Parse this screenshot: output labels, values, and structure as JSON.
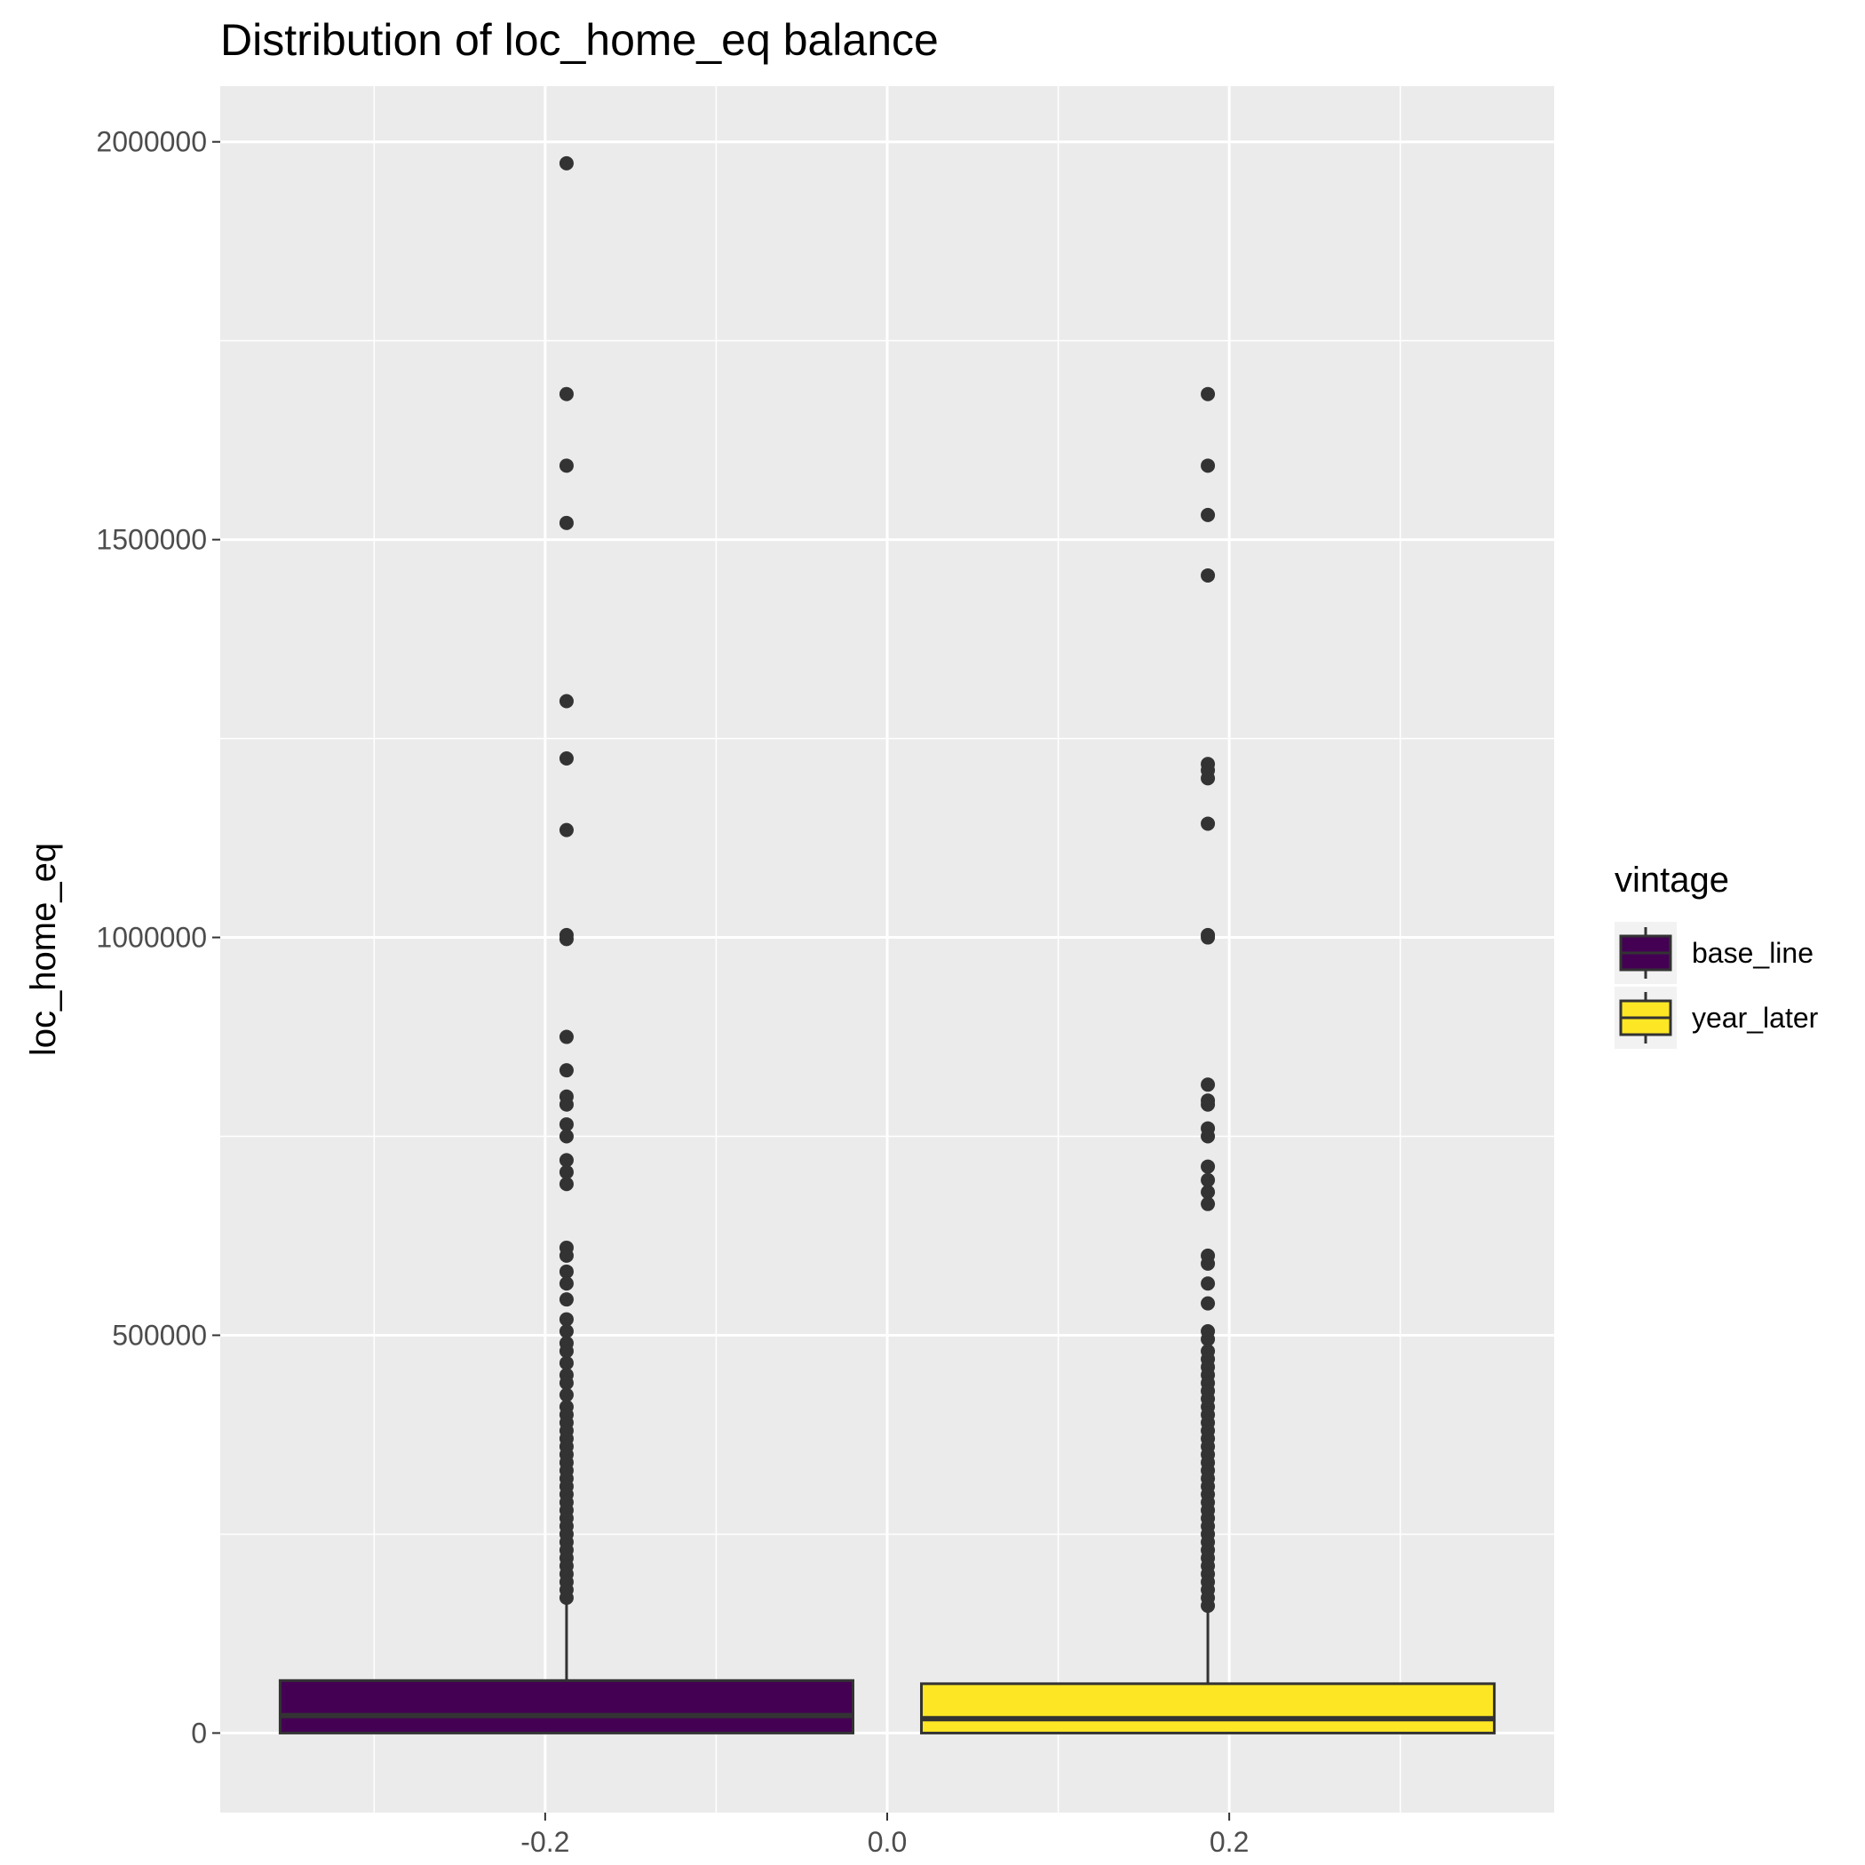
{
  "chart_data": {
    "type": "box",
    "title": "Distribution of loc_home_eq balance",
    "xlabel": "",
    "ylabel": "loc_home_eq",
    "xlim": [
      -0.39,
      0.39
    ],
    "ylim": [
      -100000,
      2070000
    ],
    "x_ticks": [
      {
        "value": -0.2,
        "label": "-0.2"
      },
      {
        "value": 0.0,
        "label": "0.0"
      },
      {
        "value": 0.2,
        "label": "0.2"
      }
    ],
    "y_ticks": [
      {
        "value": 0,
        "label": "0"
      },
      {
        "value": 500000,
        "label": "500000"
      },
      {
        "value": 1000000,
        "label": "1000000"
      },
      {
        "value": 1500000,
        "label": "1500000"
      },
      {
        "value": 2000000,
        "label": "2000000"
      }
    ],
    "grid": true,
    "legend": {
      "title": "vintage",
      "position": "right",
      "entries": [
        {
          "label": "base_line",
          "color": "#440154"
        },
        {
          "label": "year_later",
          "color": "#FDE725"
        }
      ]
    },
    "series": [
      {
        "name": "base_line",
        "color": "#440154",
        "x_left": -0.355,
        "x_right": -0.02,
        "whisker_x": -0.1875,
        "min": 0,
        "q1": 0,
        "median": 22000,
        "q3": 66000,
        "whisker_high": 165000,
        "outliers": [
          1973000,
          1683000,
          1593000,
          1521000,
          1297000,
          1225000,
          1135000,
          1003000,
          998000,
          875000,
          833000,
          800000,
          790000,
          765000,
          750000,
          720000,
          705000,
          690000,
          610000,
          600000,
          580000,
          565000,
          545000,
          520000,
          505000,
          490000,
          480000,
          465000,
          450000,
          440000,
          425000,
          410000,
          400000,
          390000,
          380000,
          370000,
          360000,
          350000,
          340000,
          330000,
          320000,
          310000,
          300000,
          290000,
          280000,
          270000,
          260000,
          250000,
          240000,
          230000,
          220000,
          210000,
          200000,
          190000,
          180000,
          170000
        ]
      },
      {
        "name": "year_later",
        "color": "#FDE725",
        "x_left": 0.02,
        "x_right": 0.355,
        "whisker_x": 0.1875,
        "min": 0,
        "q1": 0,
        "median": 18000,
        "q3": 62000,
        "whisker_high": 155000,
        "outliers": [
          1683000,
          1593000,
          1531000,
          1455000,
          1218000,
          1210000,
          1200000,
          1143000,
          1003000,
          1000000,
          815000,
          795000,
          790000,
          760000,
          750000,
          712000,
          695000,
          680000,
          665000,
          600000,
          590000,
          565000,
          540000,
          505000,
          495000,
          480000,
          470000,
          460000,
          450000,
          440000,
          430000,
          420000,
          410000,
          400000,
          390000,
          380000,
          370000,
          360000,
          350000,
          340000,
          330000,
          320000,
          310000,
          300000,
          290000,
          280000,
          270000,
          260000,
          250000,
          240000,
          230000,
          220000,
          210000,
          200000,
          190000,
          180000,
          170000,
          160000
        ]
      }
    ]
  }
}
